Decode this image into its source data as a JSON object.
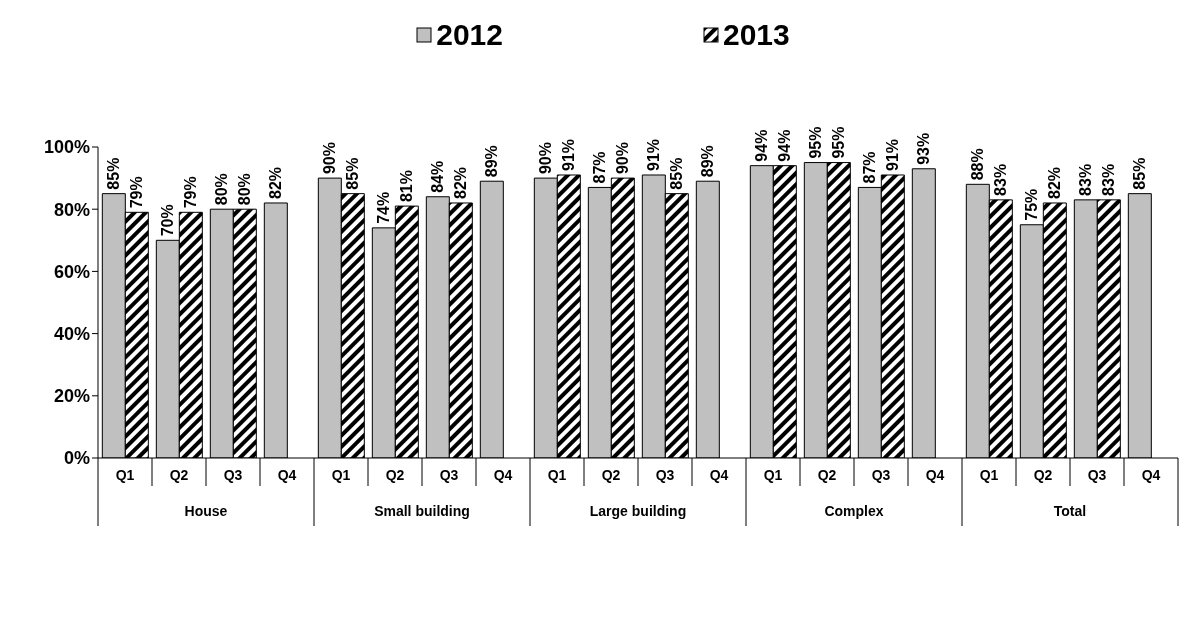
{
  "chart_data": {
    "type": "bar",
    "categories": [
      "Q1",
      "Q2",
      "Q3",
      "Q4",
      "Q1",
      "Q2",
      "Q3",
      "Q4",
      "Q1",
      "Q2",
      "Q3",
      "Q4",
      "Q1",
      "Q2",
      "Q3",
      "Q4",
      "Q1",
      "Q2",
      "Q3",
      "Q4"
    ],
    "annotations": [
      "House",
      "Small building",
      "Large building",
      "Complex",
      "Total"
    ],
    "series": [
      {
        "name": "2012",
        "color": "#c0c0c0",
        "values": [
          85,
          70,
          80,
          82,
          90,
          74,
          84,
          89,
          90,
          87,
          91,
          89,
          94,
          95,
          87,
          93,
          88,
          75,
          83,
          85
        ],
        "value_labels": [
          "85%",
          "70%",
          "80%",
          "82%",
          "90%",
          "74%",
          "84%",
          "89%",
          "90%",
          "87%",
          "91%",
          "89%",
          "94%",
          "95%",
          "87%",
          "93%",
          "88%",
          "75%",
          "83%",
          "85%"
        ]
      },
      {
        "name": "2013",
        "color": "#000000",
        "values": [
          79,
          79,
          80,
          null,
          85,
          81,
          82,
          null,
          91,
          90,
          85,
          null,
          94,
          95,
          91,
          null,
          83,
          82,
          83,
          null
        ],
        "value_labels": [
          "79%",
          "79%",
          "80%",
          null,
          "85%",
          "81%",
          "82%",
          null,
          "91%",
          "90%",
          "85%",
          null,
          "94%",
          "95%",
          "91%",
          null,
          "83%",
          "82%",
          "83%",
          null
        ]
      }
    ],
    "ylim": [
      0,
      100
    ],
    "yticks": [
      {
        "value": 0,
        "label": "0%"
      },
      {
        "value": 20,
        "label": "20%"
      },
      {
        "value": 40,
        "label": "40%"
      },
      {
        "value": 60,
        "label": "60%"
      },
      {
        "value": 80,
        "label": "80%"
      },
      {
        "value": 100,
        "label": "100%"
      }
    ],
    "grid": false,
    "legend": "top"
  }
}
